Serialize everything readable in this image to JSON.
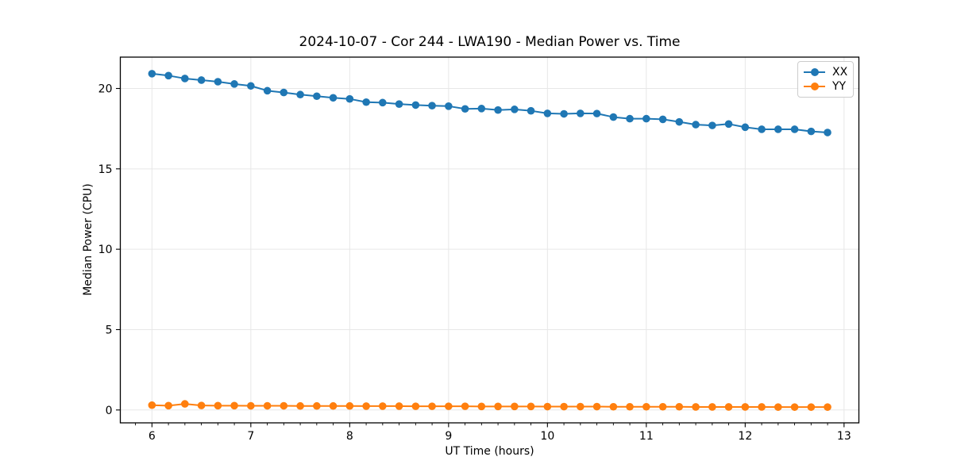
{
  "chart_data": {
    "type": "line",
    "title": "2024-10-07 - Cor 244 - LWA190 - Median Power vs. Time",
    "xlabel": "UT Time (hours)",
    "ylabel": "Median Power (CPU)",
    "x": [
      6.0,
      6.167,
      6.333,
      6.5,
      6.667,
      6.833,
      7.0,
      7.167,
      7.333,
      7.5,
      7.667,
      7.833,
      8.0,
      8.167,
      8.333,
      8.5,
      8.667,
      8.833,
      9.0,
      9.167,
      9.333,
      9.5,
      9.667,
      9.833,
      10.0,
      10.167,
      10.333,
      10.5,
      10.667,
      10.833,
      11.0,
      11.167,
      11.333,
      11.5,
      11.667,
      11.833,
      12.0,
      12.167,
      12.333,
      12.5,
      12.667,
      12.833
    ],
    "series": [
      {
        "name": "XX",
        "color": "#1f77b4",
        "values": [
          20.92,
          20.8,
          20.62,
          20.52,
          20.42,
          20.28,
          20.16,
          19.86,
          19.75,
          19.62,
          19.52,
          19.42,
          19.35,
          19.15,
          19.12,
          19.03,
          18.97,
          18.93,
          18.9,
          18.73,
          18.75,
          18.66,
          18.7,
          18.61,
          18.45,
          18.42,
          18.45,
          18.44,
          18.22,
          18.12,
          18.12,
          18.08,
          17.92,
          17.75,
          17.7,
          17.79,
          17.59,
          17.46,
          17.46,
          17.46,
          17.33,
          17.26
        ]
      },
      {
        "name": "YY",
        "color": "#ff7f0e",
        "values": [
          0.3,
          0.27,
          0.38,
          0.28,
          0.27,
          0.27,
          0.26,
          0.26,
          0.26,
          0.25,
          0.25,
          0.25,
          0.25,
          0.24,
          0.24,
          0.24,
          0.23,
          0.23,
          0.23,
          0.23,
          0.22,
          0.22,
          0.22,
          0.22,
          0.21,
          0.21,
          0.21,
          0.21,
          0.2,
          0.2,
          0.2,
          0.2,
          0.2,
          0.19,
          0.19,
          0.19,
          0.19,
          0.19,
          0.18,
          0.18,
          0.18,
          0.18
        ]
      }
    ],
    "xlim": [
      5.68,
      13.15
    ],
    "ylim": [
      -0.8,
      21.95
    ],
    "xticks": [
      6,
      7,
      8,
      9,
      10,
      11,
      12,
      13
    ],
    "yticks": [
      0,
      5,
      10,
      15,
      20
    ],
    "x_minor_step": 0.166667,
    "grid": true,
    "grid_color": "#e7e7e7",
    "axis_color": "#000000",
    "text_color": "#000000",
    "background": "#ffffff",
    "legend": {
      "position": "upper right",
      "labels": [
        "XX",
        "YY"
      ]
    }
  }
}
